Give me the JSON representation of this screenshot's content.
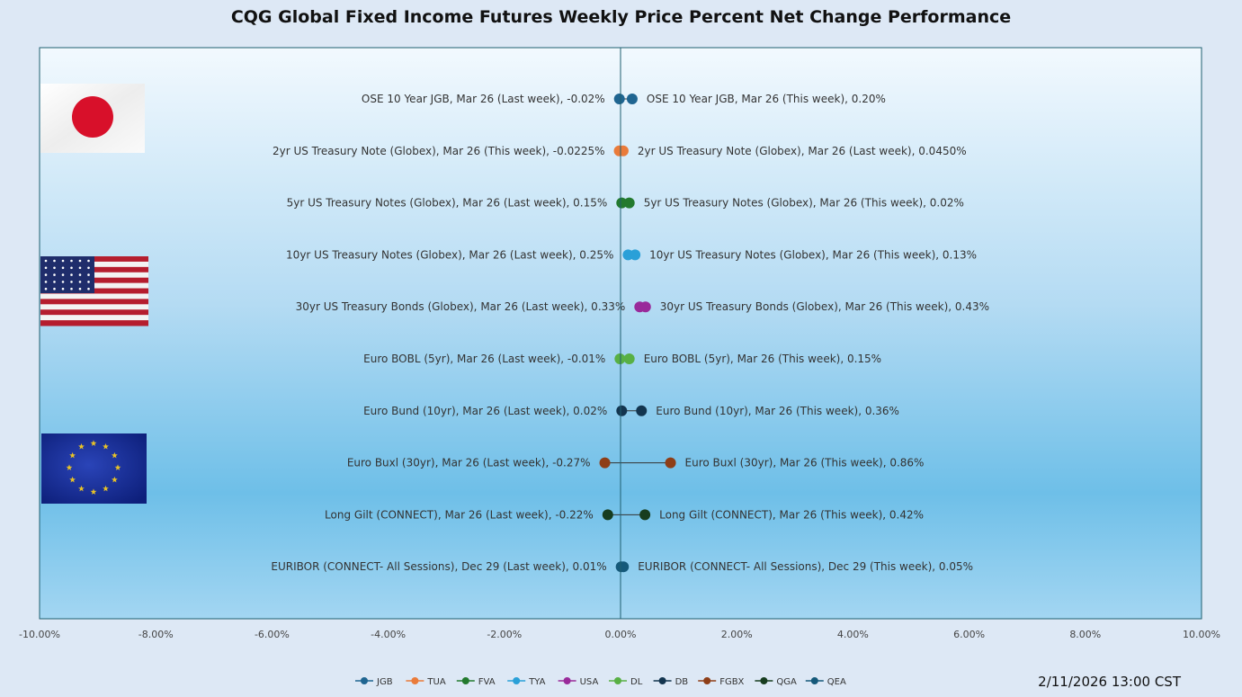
{
  "chart_data": {
    "type": "scatter",
    "title": "CQG Global Fixed Income Futures Weekly Price Percent Net Change Performance",
    "timestamp": "2/11/2026 13:00 CST",
    "xlim": [
      -10,
      10
    ],
    "xticks": [
      "-10.00%",
      "-8.00%",
      "-6.00%",
      "-4.00%",
      "-2.00%",
      "0.00%",
      "2.00%",
      "4.00%",
      "6.00%",
      "8.00%",
      "10.00%"
    ],
    "grid": false,
    "legend_position": "bottom",
    "flags": [
      "japan-flag",
      "us-flag",
      "eu-flag"
    ],
    "series": [
      {
        "name": "JGB",
        "color": "#1f6591",
        "left_label": "OSE 10 Year JGB, Mar 26 (Last week), -0.02%",
        "right_label": "OSE 10 Year JGB, Mar 26 (This week), 0.20%",
        "x": [
          -0.02,
          0.2
        ]
      },
      {
        "name": "TUA",
        "color": "#ea7b3a",
        "left_label": "2yr US Treasury Note (Globex), Mar 26 (This week), -0.0225%",
        "right_label": "2yr US Treasury Note (Globex), Mar 26 (Last week), 0.0450%",
        "x": [
          -0.0225,
          0.045
        ]
      },
      {
        "name": "FVA",
        "color": "#237a2e",
        "left_label": "5yr US Treasury Notes (Globex), Mar 26 (Last week), 0.15%",
        "right_label": "5yr US Treasury Notes (Globex), Mar 26 (This week), 0.02%",
        "x": [
          0.02,
          0.15
        ]
      },
      {
        "name": "TYA",
        "color": "#2aa0d8",
        "left_label": "10yr US Treasury Notes (Globex), Mar 26 (Last week), 0.25%",
        "right_label": "10yr US Treasury Notes (Globex), Mar 26 (This week), 0.13%",
        "x": [
          0.13,
          0.25
        ]
      },
      {
        "name": "USA",
        "color": "#992a9a",
        "left_label": "30yr US Treasury Bonds (Globex), Mar 26 (Last week), 0.33%",
        "right_label": "30yr US Treasury Bonds (Globex), Mar 26 (This week), 0.43%",
        "x": [
          0.33,
          0.43
        ]
      },
      {
        "name": "DL",
        "color": "#58b044",
        "left_label": "Euro BOBL (5yr), Mar 26 (Last week), -0.01%",
        "right_label": "Euro BOBL (5yr), Mar 26 (This week), 0.15%",
        "x": [
          -0.01,
          0.15
        ]
      },
      {
        "name": "DB",
        "color": "#13354f",
        "left_label": "Euro Bund (10yr), Mar 26 (Last week), 0.02%",
        "right_label": "Euro Bund (10yr), Mar 26 (This week), 0.36%",
        "x": [
          0.02,
          0.36
        ]
      },
      {
        "name": "FGBX",
        "color": "#8e3e17",
        "left_label": "Euro Buxl (30yr), Mar 26 (Last week), -0.27%",
        "right_label": "Euro Buxl (30yr), Mar 26 (This week), 0.86%",
        "x": [
          -0.27,
          0.86
        ]
      },
      {
        "name": "QGA",
        "color": "#173d1f",
        "left_label": "Long Gilt (CONNECT), Mar 26 (Last week), -0.22%",
        "right_label": "Long Gilt (CONNECT), Mar 26 (This week), 0.42%",
        "x": [
          -0.22,
          0.42
        ]
      },
      {
        "name": "QEA",
        "color": "#15597a",
        "left_label": "EURIBOR (CONNECT- All Sessions), Dec 29 (Last week), 0.01%",
        "right_label": "EURIBOR (CONNECT- All Sessions), Dec 29 (This week), 0.05%",
        "x": [
          0.01,
          0.05
        ]
      }
    ]
  }
}
